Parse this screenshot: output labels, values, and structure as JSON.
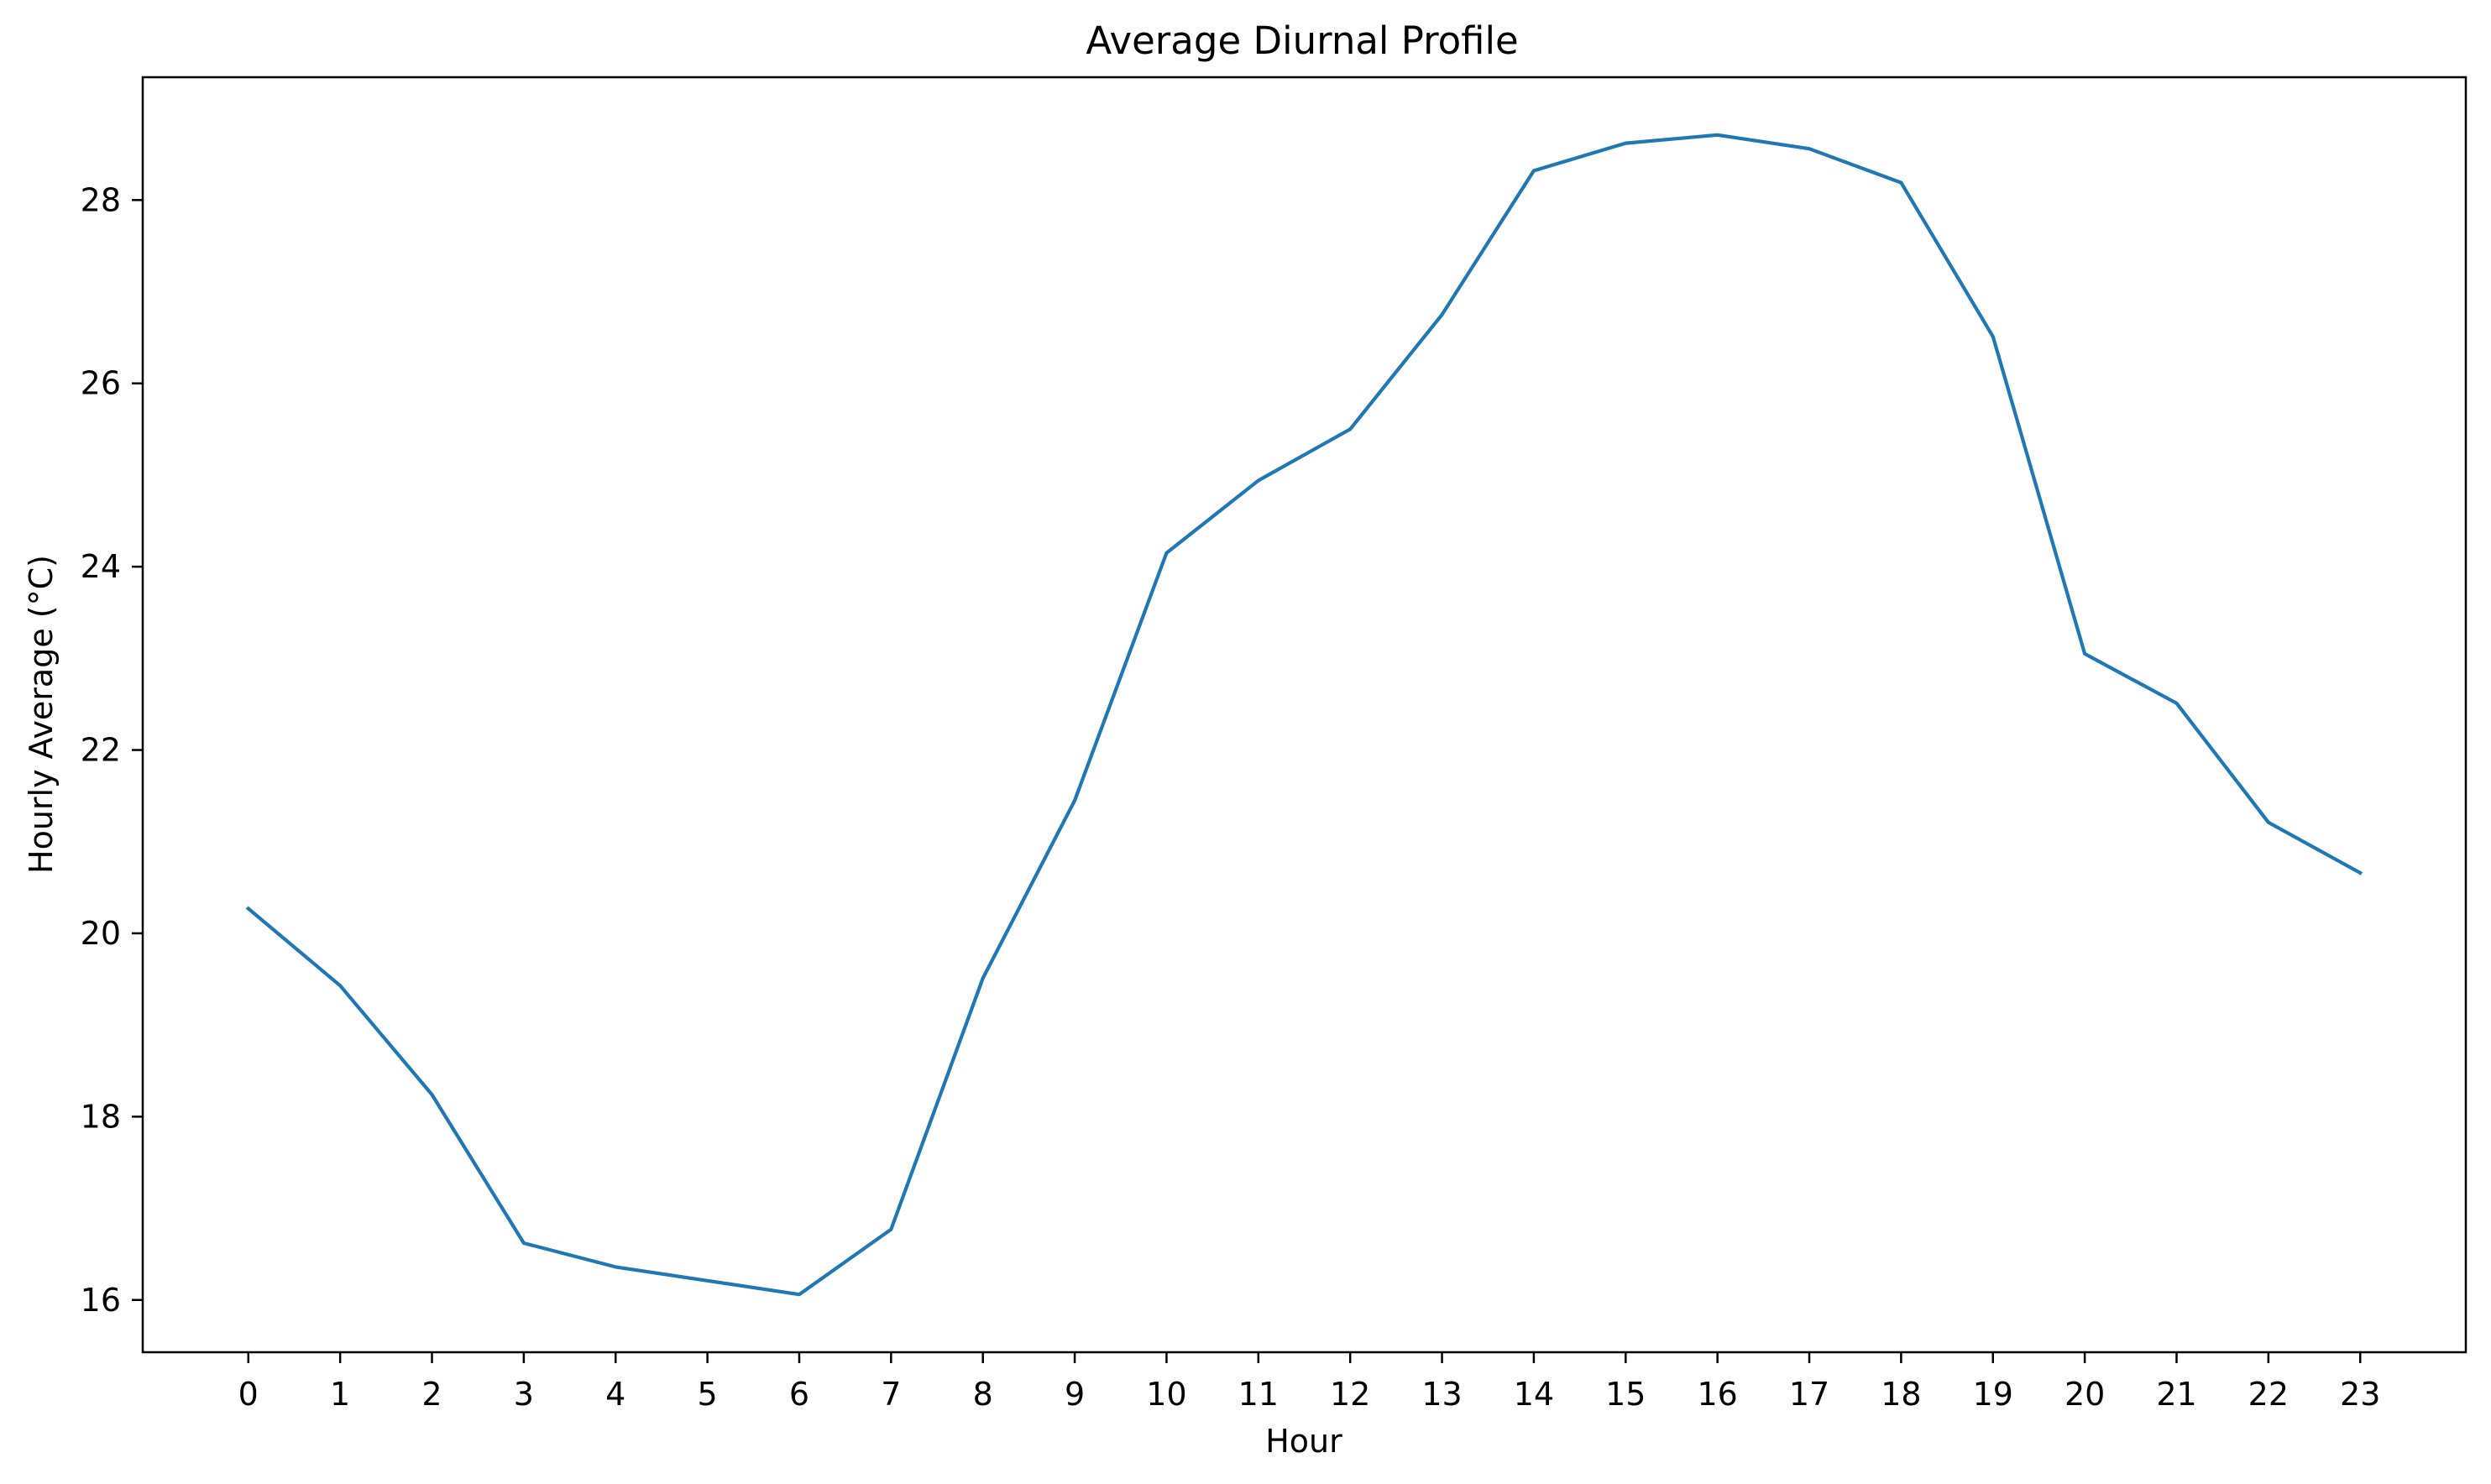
{
  "chart_data": {
    "type": "line",
    "title": "Average Diurnal Profile",
    "xlabel": "Hour",
    "ylabel": "Hourly Average (°C)",
    "x": [
      0,
      1,
      2,
      3,
      4,
      5,
      6,
      7,
      8,
      9,
      10,
      11,
      12,
      13,
      14,
      15,
      16,
      17,
      18,
      19,
      20,
      21,
      22,
      23
    ],
    "x_ticks": [
      "0",
      "1",
      "2",
      "3",
      "4",
      "5",
      "6",
      "7",
      "8",
      "9",
      "10",
      "11",
      "12",
      "13",
      "14",
      "15",
      "16",
      "17",
      "18",
      "19",
      "20",
      "21",
      "22",
      "23"
    ],
    "y_ticks": [
      "16",
      "18",
      "20",
      "22",
      "24",
      "26",
      "28"
    ],
    "series": [
      {
        "values": [
          20.27,
          19.43,
          18.24,
          16.62,
          16.36,
          16.21,
          16.06,
          16.77,
          19.51,
          21.45,
          24.15,
          24.94,
          25.5,
          26.75,
          28.32,
          28.62,
          28.71,
          28.56,
          28.19,
          26.51,
          23.05,
          22.51,
          21.21,
          20.66
        ],
        "color": "#1f77b4"
      }
    ],
    "xlim": [
      -1.15,
      24.15
    ],
    "ylim": [
      15.43,
      29.34
    ],
    "grid": false,
    "legend": "none"
  }
}
